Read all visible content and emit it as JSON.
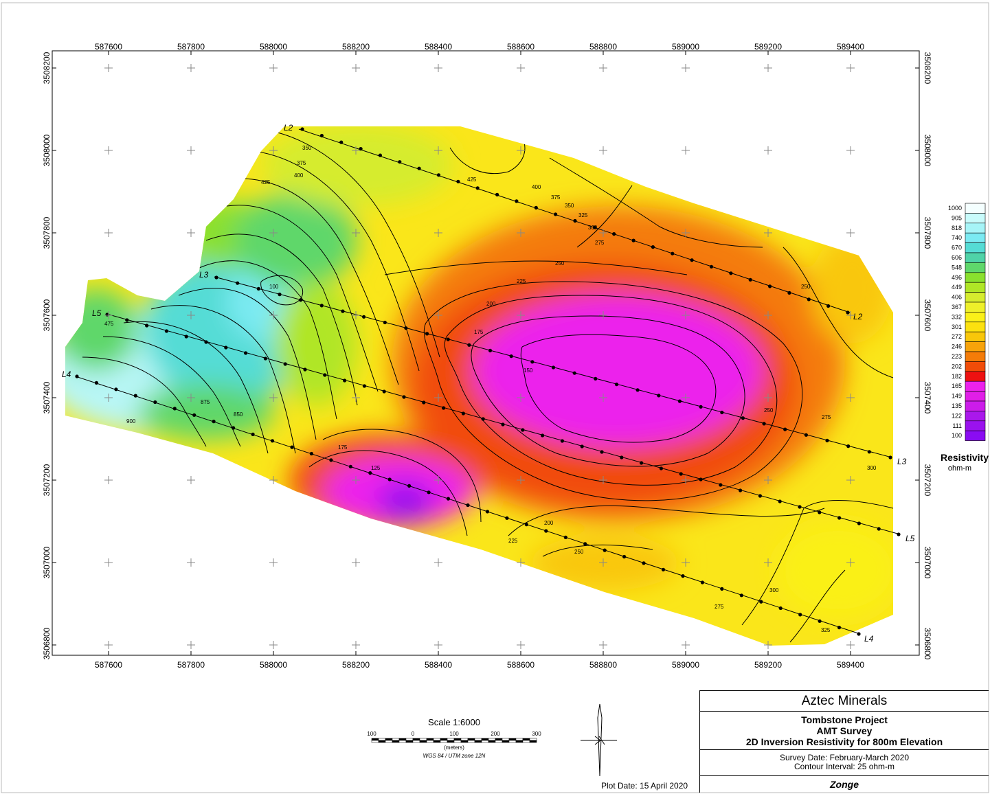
{
  "map": {
    "x_ticks": [
      "587600",
      "587800",
      "588000",
      "588200",
      "588400",
      "588600",
      "588800",
      "589000",
      "589200",
      "589400"
    ],
    "y_ticks": [
      "3508200",
      "3508000",
      "3507800",
      "3507600",
      "3507400",
      "3507200",
      "3507000",
      "3506800"
    ]
  },
  "survey_lines": [
    "L2",
    "L3",
    "L4",
    "L5"
  ],
  "contour_labels": [
    "350",
    "375",
    "400",
    "425",
    "425",
    "400",
    "375",
    "350",
    "325",
    "300",
    "275",
    "250",
    "225",
    "200",
    "175",
    "150",
    "125",
    "175",
    "200",
    "225",
    "250",
    "275",
    "300",
    "325",
    "100",
    "475",
    "900",
    "875",
    "850",
    "250",
    "275",
    "300",
    "250"
  ],
  "legend": {
    "values": [
      "1000",
      "905",
      "818",
      "740",
      "670",
      "606",
      "548",
      "496",
      "449",
      "406",
      "367",
      "332",
      "301",
      "272",
      "246",
      "223",
      "202",
      "182",
      "165",
      "149",
      "135",
      "122",
      "111",
      "100"
    ],
    "colors": [
      "#f4ffff",
      "#c8fbfb",
      "#a6f4f7",
      "#7beaf2",
      "#55dcd5",
      "#4fd3a8",
      "#5fd76b",
      "#8ae02e",
      "#b0e626",
      "#d6ec2e",
      "#eef02a",
      "#faf019",
      "#fce10f",
      "#f9c70a",
      "#f7a30a",
      "#f47c08",
      "#f14c08",
      "#ee1111",
      "#ec22ec",
      "#e11ee8",
      "#cc1cea",
      "#aa18ec",
      "#9a12ee",
      "#8a0cf2"
    ],
    "title": "Resistivity",
    "unit": "ohm-m"
  },
  "scale": {
    "title": "Scale 1:6000",
    "labels": [
      "100",
      "0",
      "100",
      "200",
      "300"
    ],
    "unit": "(meters)",
    "projection": "WGS 84 / UTM zone 12N"
  },
  "title_block": {
    "company": "Aztec Minerals",
    "project_line1": "Tombstone Project",
    "project_line2": "AMT Survey",
    "project_line3": "2D Inversion Resistivity for 800m Elevation",
    "survey_date": "Survey Date: February-March 2020",
    "contour_interval": "Contour Interval: 25 ohm-m",
    "contractor": "Zonge"
  },
  "plot_date": "Plot Date: 15 April 2020",
  "colors": {
    "frame": "#000000",
    "grid_cross": "#888888"
  }
}
